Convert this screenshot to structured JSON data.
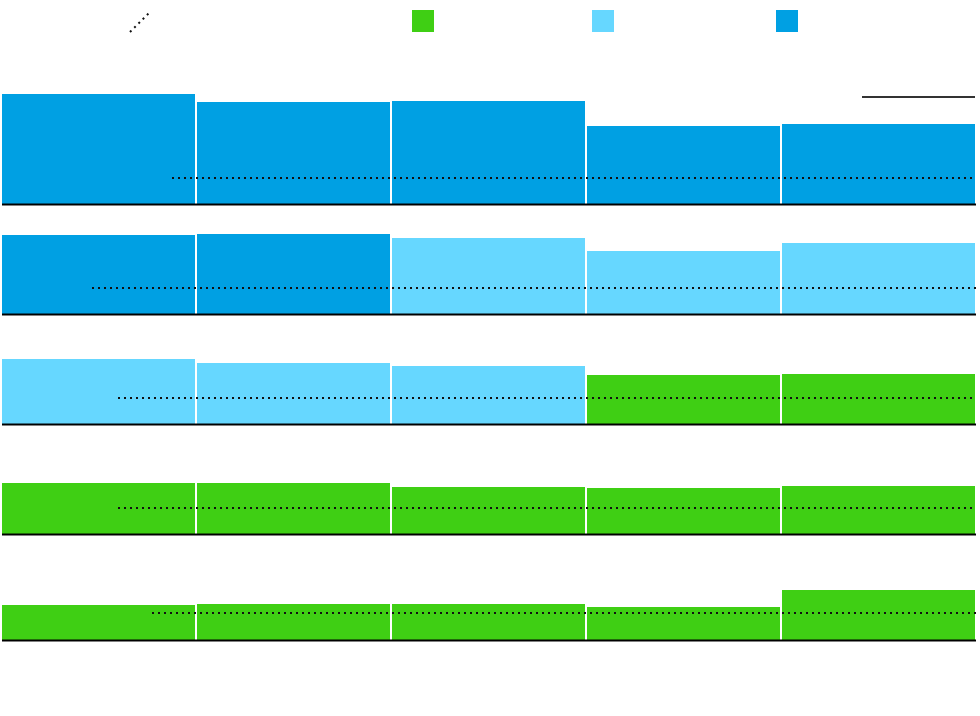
{
  "colors": {
    "green": "#3fcf14",
    "light_blue": "#66d7ff",
    "dark_blue": "#00a0e3",
    "reference": "#111111"
  },
  "legend": [
    {
      "marker": "dotted-line"
    },
    {
      "marker": "swatch",
      "color_key": "green"
    },
    {
      "marker": "swatch",
      "color_key": "light_blue"
    },
    {
      "marker": "swatch",
      "color_key": "dark_blue"
    }
  ],
  "chart_data": {
    "type": "bar",
    "title": "",
    "xlabel": "",
    "ylabel": "",
    "grid": false,
    "legend_placement": "top",
    "rows": [
      {
        "values": [
          110,
          102,
          103,
          78,
          80
        ],
        "colors": [
          "dark_blue",
          "dark_blue",
          "dark_blue",
          "dark_blue",
          "dark_blue"
        ],
        "reference": 26
      },
      {
        "values": [
          79,
          80,
          76,
          63,
          71
        ],
        "colors": [
          "dark_blue",
          "dark_blue",
          "light_blue",
          "light_blue",
          "light_blue"
        ],
        "reference": 26
      },
      {
        "values": [
          65,
          61,
          58,
          49,
          50
        ],
        "colors": [
          "light_blue",
          "light_blue",
          "light_blue",
          "green",
          "green"
        ],
        "reference": 26
      },
      {
        "values": [
          51,
          51,
          47,
          46,
          48
        ],
        "colors": [
          "green",
          "green",
          "green",
          "green",
          "green"
        ],
        "reference": 26
      },
      {
        "values": [
          35,
          36,
          36,
          33,
          50
        ],
        "colors": [
          "green",
          "green",
          "green",
          "green",
          "green"
        ],
        "reference": 27
      }
    ]
  }
}
